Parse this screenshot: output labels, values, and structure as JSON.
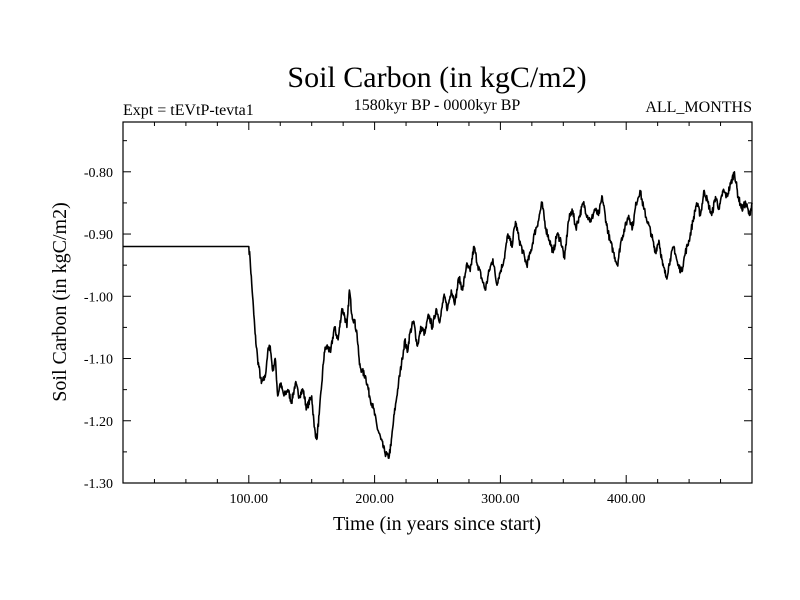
{
  "chart_data": {
    "type": "line",
    "title": "Soil Carbon (in kgC/m2)",
    "subtitle": "1580kyr BP - 0000kyr BP",
    "left_label": "Expt = tEVtP-tevta1",
    "right_label": "ALL_MONTHS",
    "xlabel": "Time (in years since start)",
    "ylabel": "Soil Carbon (in kgC/m2)",
    "xlim": [
      0,
      500
    ],
    "ylim": [
      -1.3,
      -0.72
    ],
    "x_ticks": [
      100,
      200,
      300,
      400
    ],
    "x_tick_labels": [
      "100.00",
      "200.00",
      "300.00",
      "400.00"
    ],
    "y_ticks": [
      -1.3,
      -1.2,
      -1.1,
      -1.0,
      -0.9,
      -0.8
    ],
    "y_tick_labels": [
      "-1.30",
      "-1.20",
      "-1.10",
      "-1.00",
      "-0.90",
      "-0.80"
    ],
    "grid": false,
    "series": [
      {
        "name": "Soil Carbon",
        "x": [
          0,
          100,
          101,
          103,
          105,
          107,
          110,
          113,
          115,
          117,
          119,
          121,
          123,
          125,
          128,
          131,
          134,
          137,
          140,
          143,
          146,
          150,
          152,
          154,
          156,
          158,
          160,
          162,
          165,
          168,
          171,
          174,
          176,
          178,
          180,
          182,
          184,
          186,
          188,
          190,
          193,
          196,
          199,
          202,
          205,
          208,
          211,
          213,
          215,
          217,
          219,
          222,
          224,
          226,
          228,
          231,
          234,
          237,
          240,
          243,
          246,
          249,
          252,
          255,
          258,
          261,
          264,
          267,
          270,
          273,
          276,
          279,
          282,
          285,
          288,
          291,
          294,
          297,
          300,
          303,
          306,
          309,
          312,
          315,
          318,
          321,
          324,
          327,
          330,
          333,
          336,
          339,
          342,
          345,
          348,
          351,
          354,
          357,
          360,
          363,
          366,
          369,
          372,
          375,
          378,
          381,
          384,
          387,
          390,
          393,
          396,
          399,
          402,
          405,
          408,
          411,
          414,
          417,
          420,
          423,
          426,
          429,
          432,
          435,
          438,
          441,
          444,
          447,
          450,
          453,
          456,
          459,
          462,
          465,
          468,
          471,
          474,
          477,
          480,
          483,
          486,
          489,
          492,
          495,
          498,
          500
        ],
        "y": [
          -0.92,
          -0.92,
          -0.94,
          -1.0,
          -1.06,
          -1.1,
          -1.14,
          -1.13,
          -1.09,
          -1.08,
          -1.12,
          -1.1,
          -1.16,
          -1.14,
          -1.16,
          -1.15,
          -1.17,
          -1.14,
          -1.16,
          -1.15,
          -1.18,
          -1.16,
          -1.21,
          -1.23,
          -1.19,
          -1.14,
          -1.09,
          -1.08,
          -1.09,
          -1.05,
          -1.07,
          -1.02,
          -1.03,
          -1.05,
          -0.99,
          -1.03,
          -1.04,
          -1.06,
          -1.11,
          -1.12,
          -1.13,
          -1.16,
          -1.18,
          -1.21,
          -1.23,
          -1.25,
          -1.26,
          -1.24,
          -1.2,
          -1.17,
          -1.14,
          -1.1,
          -1.07,
          -1.09,
          -1.06,
          -1.04,
          -1.08,
          -1.05,
          -1.06,
          -1.03,
          -1.05,
          -1.02,
          -1.04,
          -1.0,
          -1.02,
          -0.99,
          -1.01,
          -0.97,
          -0.99,
          -0.95,
          -0.96,
          -0.92,
          -0.95,
          -0.97,
          -0.99,
          -0.96,
          -0.94,
          -0.98,
          -0.96,
          -0.94,
          -0.9,
          -0.92,
          -0.88,
          -0.91,
          -0.93,
          -0.95,
          -0.93,
          -0.9,
          -0.88,
          -0.85,
          -0.89,
          -0.91,
          -0.93,
          -0.9,
          -0.91,
          -0.94,
          -0.88,
          -0.86,
          -0.89,
          -0.87,
          -0.85,
          -0.87,
          -0.88,
          -0.86,
          -0.87,
          -0.84,
          -0.88,
          -0.91,
          -0.93,
          -0.95,
          -0.91,
          -0.89,
          -0.87,
          -0.89,
          -0.85,
          -0.83,
          -0.86,
          -0.88,
          -0.9,
          -0.93,
          -0.91,
          -0.95,
          -0.97,
          -0.94,
          -0.92,
          -0.95,
          -0.96,
          -0.93,
          -0.91,
          -0.88,
          -0.85,
          -0.87,
          -0.83,
          -0.85,
          -0.87,
          -0.84,
          -0.86,
          -0.83,
          -0.84,
          -0.82,
          -0.8,
          -0.84,
          -0.86,
          -0.85,
          -0.87,
          -0.85
        ]
      }
    ]
  }
}
